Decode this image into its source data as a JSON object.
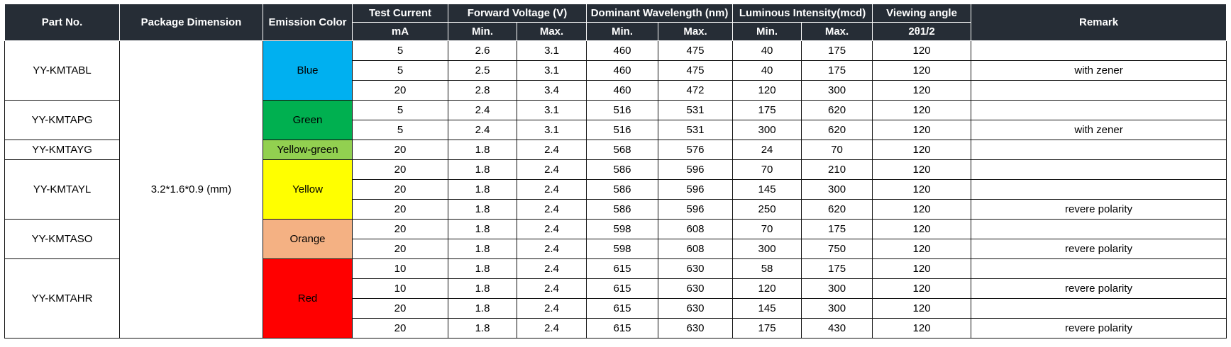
{
  "headers": {
    "part_no": "Part No.",
    "package_dimension": "Package Dimension",
    "emission_color": "Emission Color",
    "test_current": "Test Current",
    "test_current_unit": "mA",
    "forward_voltage": "Forward Voltage (V)",
    "dominant_wavelength": "Dominant  Wavelength (nm)",
    "luminous_intensity": "Luminous Intensity(mcd)",
    "viewing_angle": "Viewing angle",
    "viewing_angle_unit": "2θ1/2",
    "remark": "Remark",
    "min": "Min.",
    "max": "Max."
  },
  "package_dimension": "3.2*1.6*0.9 (mm)",
  "groups": [
    {
      "part": "YY-KMTABL",
      "color": "Blue",
      "fill": "#00b0f0",
      "rows": [
        {
          "current": "5",
          "vf_min": "2.6",
          "vf_max": "3.1",
          "wl_min": "460",
          "wl_max": "475",
          "iv_min": "40",
          "iv_max": "175",
          "angle": "120",
          "remark": ""
        },
        {
          "current": "5",
          "vf_min": "2.5",
          "vf_max": "3.1",
          "wl_min": "460",
          "wl_max": "475",
          "iv_min": "40",
          "iv_max": "175",
          "angle": "120",
          "remark": "with zener"
        },
        {
          "current": "20",
          "vf_min": "2.8",
          "vf_max": "3.4",
          "wl_min": "460",
          "wl_max": "472",
          "iv_min": "120",
          "iv_max": "300",
          "angle": "120",
          "remark": ""
        }
      ]
    },
    {
      "part": "YY-KMTAPG",
      "color": "Green",
      "fill": "#00b050",
      "rows": [
        {
          "current": "5",
          "vf_min": "2.4",
          "vf_max": "3.1",
          "wl_min": "516",
          "wl_max": "531",
          "iv_min": "175",
          "iv_max": "620",
          "angle": "120",
          "remark": ""
        },
        {
          "current": "5",
          "vf_min": "2.4",
          "vf_max": "3.1",
          "wl_min": "516",
          "wl_max": "531",
          "iv_min": "300",
          "iv_max": "620",
          "angle": "120",
          "remark": "with zener"
        }
      ]
    },
    {
      "part": "YY-KMTAYG",
      "color": "Yellow-green",
      "fill": "#92d050",
      "rows": [
        {
          "current": "20",
          "vf_min": "1.8",
          "vf_max": "2.4",
          "wl_min": "568",
          "wl_max": "576",
          "iv_min": "24",
          "iv_max": "70",
          "angle": "120",
          "remark": ""
        }
      ]
    },
    {
      "part": "YY-KMTAYL",
      "color": "Yellow",
      "fill": "#ffff00",
      "rows": [
        {
          "current": "20",
          "vf_min": "1.8",
          "vf_max": "2.4",
          "wl_min": "586",
          "wl_max": "596",
          "iv_min": "70",
          "iv_max": "210",
          "angle": "120",
          "remark": ""
        },
        {
          "current": "20",
          "vf_min": "1.8",
          "vf_max": "2.4",
          "wl_min": "586",
          "wl_max": "596",
          "iv_min": "145",
          "iv_max": "300",
          "angle": "120",
          "remark": ""
        },
        {
          "current": "20",
          "vf_min": "1.8",
          "vf_max": "2.4",
          "wl_min": "586",
          "wl_max": "596",
          "iv_min": "250",
          "iv_max": "620",
          "angle": "120",
          "remark": "revere polarity"
        }
      ]
    },
    {
      "part": "YY-KMTASO",
      "color": "Orange",
      "fill": "#f4b183",
      "rows": [
        {
          "current": "20",
          "vf_min": "1.8",
          "vf_max": "2.4",
          "wl_min": "598",
          "wl_max": "608",
          "iv_min": "70",
          "iv_max": "175",
          "angle": "120",
          "remark": ""
        },
        {
          "current": "20",
          "vf_min": "1.8",
          "vf_max": "2.4",
          "wl_min": "598",
          "wl_max": "608",
          "iv_min": "300",
          "iv_max": "750",
          "angle": "120",
          "remark": "revere polarity"
        }
      ]
    },
    {
      "part": "YY-KMTAHR",
      "color": "Red",
      "fill": "#ff0000",
      "rows": [
        {
          "current": "10",
          "vf_min": "1.8",
          "vf_max": "2.4",
          "wl_min": "615",
          "wl_max": "630",
          "iv_min": "58",
          "iv_max": "175",
          "angle": "120",
          "remark": ""
        },
        {
          "current": "10",
          "vf_min": "1.8",
          "vf_max": "2.4",
          "wl_min": "615",
          "wl_max": "630",
          "iv_min": "120",
          "iv_max": "300",
          "angle": "120",
          "remark": "revere polarity"
        },
        {
          "current": "20",
          "vf_min": "1.8",
          "vf_max": "2.4",
          "wl_min": "615",
          "wl_max": "630",
          "iv_min": "145",
          "iv_max": "300",
          "angle": "120",
          "remark": ""
        },
        {
          "current": "20",
          "vf_min": "1.8",
          "vf_max": "2.4",
          "wl_min": "615",
          "wl_max": "630",
          "iv_min": "175",
          "iv_max": "430",
          "angle": "120",
          "remark": "revere polarity"
        }
      ]
    }
  ]
}
